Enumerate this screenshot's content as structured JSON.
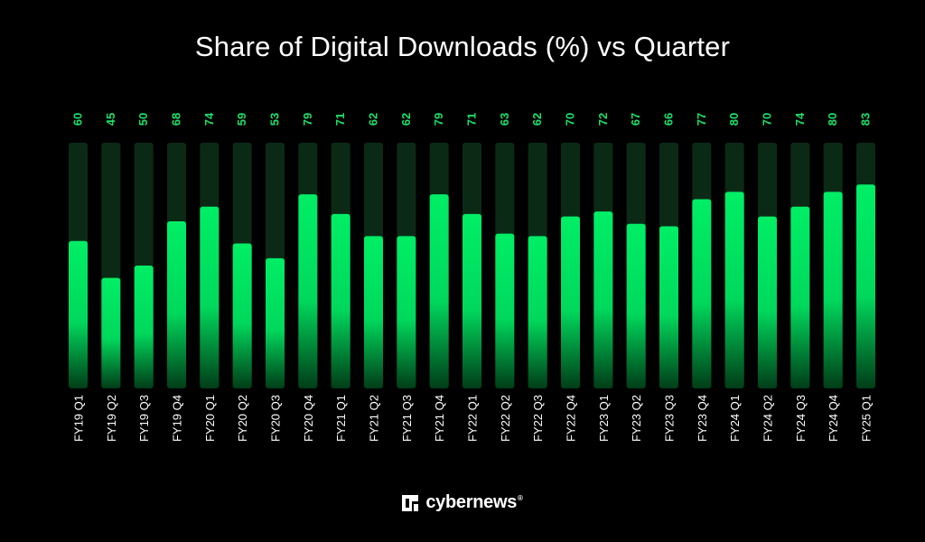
{
  "colors": {
    "bar": "#00e660",
    "track": "#0b2a16",
    "value_label": "#19e16a",
    "tick": "#ffffff"
  },
  "brand": {
    "name": "cybernews",
    "reg": "®",
    "icon": "cybernews-logo-icon"
  },
  "chart_data": {
    "type": "bar",
    "title": "Share of Digital Downloads (%) vs Quarter",
    "xlabel": "",
    "ylabel": "",
    "ylim": [
      0,
      100
    ],
    "grid": false,
    "categories": [
      "FY19 Q1",
      "FY19 Q2",
      "FY19 Q3",
      "FY19 Q4",
      "FY20 Q1",
      "FY20 Q2",
      "FY20 Q3",
      "FY20 Q4",
      "FY21 Q1",
      "FY21 Q2",
      "FY21 Q3",
      "FY21 Q4",
      "FY22 Q1",
      "FY22 Q2",
      "FY22 Q3",
      "FY22 Q4",
      "FY23 Q1",
      "FY23 Q2",
      "FY23 Q3",
      "FY23 Q4",
      "FY24 Q1",
      "FY24 Q2",
      "FY24 Q3",
      "FY24 Q4",
      "FY25 Q1"
    ],
    "values": [
      60,
      45,
      50,
      68,
      74,
      59,
      53,
      79,
      71,
      62,
      62,
      79,
      71,
      63,
      62,
      70,
      72,
      67,
      66,
      77,
      80,
      70,
      74,
      80,
      83
    ]
  }
}
